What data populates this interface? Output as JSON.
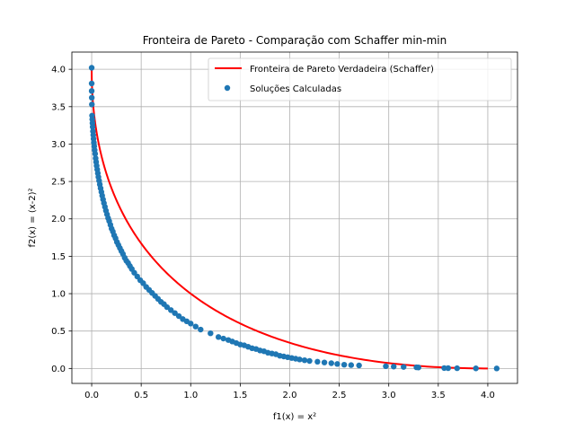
{
  "chart_data": {
    "type": "scatter",
    "title": "Fronteira de Pareto - Comparação com Schaffer min-min",
    "xlabel": "f1(x) = x²",
    "ylabel": "f2(x) = (x-2)²",
    "xlim": [
      -0.2,
      4.3
    ],
    "ylim": [
      -0.2,
      4.23
    ],
    "xticks": [
      0.0,
      0.5,
      1.0,
      1.5,
      2.0,
      2.5,
      3.0,
      3.5,
      4.0
    ],
    "xtick_labels": [
      "0.0",
      "0.5",
      "1.0",
      "1.5",
      "2.0",
      "2.5",
      "3.0",
      "3.5",
      "4.0"
    ],
    "yticks": [
      0.0,
      0.5,
      1.0,
      1.5,
      2.0,
      2.5,
      3.0,
      3.5,
      4.0
    ],
    "ytick_labels": [
      "0.0",
      "0.5",
      "1.0",
      "1.5",
      "2.0",
      "2.5",
      "3.0",
      "3.5",
      "4.0"
    ],
    "grid": true,
    "legend_position": "top-right",
    "series": [
      {
        "name": "Fronteira de Pareto Verdadeira (Schaffer)",
        "kind": "line",
        "color": "#ff0000",
        "x_range": [
          0,
          4
        ],
        "formula": "f2 = (sqrt(f1) - 2)^2"
      },
      {
        "name": "Soluções Calculadas",
        "kind": "scatter",
        "color": "#1f77b4",
        "x": [
          0.0,
          0.0,
          0.0,
          0.001,
          0.002,
          0.004,
          0.006,
          0.008,
          0.01,
          0.013,
          0.016,
          0.019,
          0.022,
          0.026,
          0.03,
          0.035,
          0.04,
          0.045,
          0.05,
          0.056,
          0.062,
          0.068,
          0.075,
          0.082,
          0.09,
          0.098,
          0.106,
          0.115,
          0.124,
          0.134,
          0.144,
          0.155,
          0.166,
          0.177,
          0.189,
          0.201,
          0.214,
          0.227,
          0.241,
          0.255,
          0.27,
          0.285,
          0.3,
          0.316,
          0.333,
          0.35,
          0.368,
          0.386,
          0.405,
          0.43,
          0.46,
          0.49,
          0.52,
          0.55,
          0.58,
          0.61,
          0.64,
          0.67,
          0.7,
          0.73,
          0.76,
          0.8,
          0.84,
          0.88,
          0.92,
          0.96,
          1.0,
          1.05,
          1.1,
          1.2,
          1.28,
          1.33,
          1.38,
          1.42,
          1.46,
          1.5,
          1.54,
          1.58,
          1.62,
          1.66,
          1.7,
          1.74,
          1.78,
          1.82,
          1.86,
          1.9,
          1.94,
          1.98,
          2.02,
          2.06,
          2.1,
          2.15,
          2.2,
          2.28,
          2.35,
          2.42,
          2.48,
          2.55,
          2.62,
          2.7,
          2.97,
          3.05,
          3.15,
          3.28,
          3.3,
          3.56,
          3.6,
          3.69,
          3.88,
          4.09
        ],
        "y": [
          4.02,
          3.81,
          3.71,
          3.62,
          3.53,
          3.38,
          3.33,
          3.28,
          3.23,
          3.17,
          3.12,
          3.07,
          3.02,
          2.97,
          2.92,
          2.87,
          2.81,
          2.76,
          2.71,
          2.66,
          2.61,
          2.56,
          2.51,
          2.46,
          2.41,
          2.36,
          2.31,
          2.26,
          2.21,
          2.16,
          2.11,
          2.06,
          2.01,
          1.97,
          1.92,
          1.87,
          1.83,
          1.78,
          1.74,
          1.69,
          1.65,
          1.61,
          1.57,
          1.53,
          1.48,
          1.44,
          1.41,
          1.37,
          1.33,
          1.28,
          1.23,
          1.18,
          1.14,
          1.09,
          1.05,
          1.01,
          0.97,
          0.93,
          0.89,
          0.86,
          0.82,
          0.78,
          0.74,
          0.7,
          0.66,
          0.63,
          0.6,
          0.56,
          0.52,
          0.47,
          0.42,
          0.4,
          0.38,
          0.36,
          0.34,
          0.32,
          0.31,
          0.29,
          0.27,
          0.26,
          0.24,
          0.23,
          0.21,
          0.2,
          0.19,
          0.17,
          0.16,
          0.15,
          0.14,
          0.13,
          0.12,
          0.11,
          0.1,
          0.09,
          0.08,
          0.07,
          0.06,
          0.05,
          0.045,
          0.04,
          0.03,
          0.025,
          0.02,
          0.015,
          0.013,
          0.005,
          0.004,
          0.003,
          0.001,
          0.0
        ]
      }
    ]
  }
}
